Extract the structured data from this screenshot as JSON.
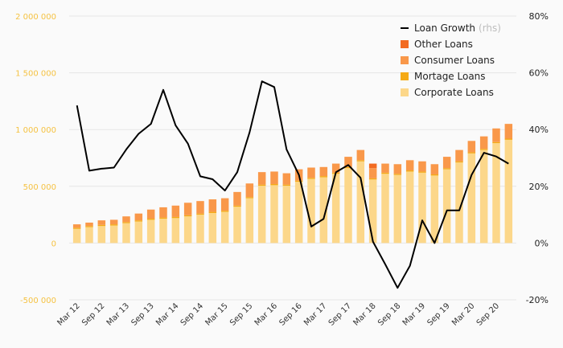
{
  "chart_data": {
    "type": "bar",
    "stacked": true,
    "categories": [
      "Mar 12",
      "Jun 12",
      "Sep 12",
      "Dec 12",
      "Mar 13",
      "Jun 13",
      "Sep 13",
      "Dec 13",
      "Mar 14",
      "Jun 14",
      "Sep 14",
      "Dec 14",
      "Mar 15",
      "Jun 15",
      "Sep 15",
      "Dec 15",
      "Mar 16",
      "Jun 16",
      "Sep 16",
      "Dec 16",
      "Mar 17",
      "Jun 17",
      "Sep 17",
      "Dec 17",
      "Mar 18",
      "Jun 18",
      "Sep 18",
      "Dec 18",
      "Mar 19",
      "Jun 19",
      "Sep 19",
      "Dec 19",
      "Mar 20",
      "Jun 20",
      "Sep 20",
      "Dec 20"
    ],
    "x_tick_labels": [
      "Mar 12",
      "Sep 12",
      "Mar 13",
      "Sep 13",
      "Mar 14",
      "Sep 14",
      "Mar 15",
      "Sep 15",
      "Mar 16",
      "Sep 16",
      "Mar 17",
      "Sep 17",
      "Mar 18",
      "Sep 18",
      "Mar 19",
      "Sep 19",
      "Mar 20",
      "Sep 20"
    ],
    "series": [
      {
        "name": "Corporate Loans",
        "color": "#fcd78a",
        "values": [
          125000,
          140000,
          150000,
          155000,
          175000,
          190000,
          205000,
          215000,
          220000,
          235000,
          250000,
          265000,
          275000,
          320000,
          395000,
          505000,
          510000,
          505000,
          540000,
          565000,
          580000,
          610000,
          660000,
          720000,
          560000,
          610000,
          600000,
          630000,
          620000,
          595000,
          650000,
          710000,
          790000,
          820000,
          880000,
          910000
        ]
      },
      {
        "name": "Mortage Loans",
        "color": "#f5aa14",
        "values": [
          10000,
          10000,
          10000,
          10000,
          10000,
          10000,
          10000,
          10000,
          10000,
          10000,
          10000,
          10000,
          10000,
          10000,
          10000,
          10000,
          10000,
          10000,
          10000,
          10000,
          10000,
          10000,
          10000,
          10000,
          10000,
          10000,
          10000,
          10000,
          10000,
          10000,
          10000,
          10000,
          10000,
          10000,
          10000,
          10000
        ]
      },
      {
        "name": "Consumer Loans",
        "color": "#f9984a",
        "values": [
          30000,
          30000,
          40000,
          40000,
          50000,
          60000,
          80000,
          90000,
          100000,
          110000,
          110000,
          110000,
          110000,
          120000,
          120000,
          110000,
          110000,
          100000,
          100000,
          90000,
          80000,
          80000,
          90000,
          90000,
          90000,
          80000,
          85000,
          90000,
          90000,
          90000,
          100000,
          100000,
          100000,
          110000,
          120000,
          130000
        ]
      },
      {
        "name": "Other Loans",
        "color": "#f26b21",
        "values": [
          0,
          0,
          0,
          0,
          0,
          0,
          0,
          0,
          0,
          0,
          0,
          0,
          0,
          0,
          0,
          0,
          0,
          0,
          0,
          0,
          0,
          0,
          0,
          0,
          40000,
          0,
          0,
          0,
          0,
          0,
          0,
          0,
          0,
          0,
          0,
          0
        ]
      }
    ],
    "line": {
      "name": "Loan Growth",
      "name_suffix": "(rhs)",
      "axis": "right",
      "color": "#000000",
      "values": [
        48.5,
        25.5,
        26.2,
        26.6,
        33,
        38.5,
        42,
        54,
        41.5,
        35,
        23.5,
        22.5,
        18.5,
        25,
        39,
        57,
        55,
        33,
        24,
        5.8,
        8.5,
        25,
        27.5,
        23,
        0.5,
        -7.5,
        -15.8,
        -8,
        8,
        0,
        11.5,
        11.5,
        24,
        31.8,
        30.5,
        28
      ]
    },
    "y_left": {
      "min": -500000,
      "max": 2000000,
      "ticks": [
        -500000,
        0,
        500000,
        1000000,
        1500000,
        2000000
      ],
      "tick_labels": [
        "-500 000",
        "0",
        "500 000",
        "1 000 000",
        "1 500 000",
        "2 000 000"
      ]
    },
    "y_right": {
      "min": -20,
      "max": 80,
      "ticks": [
        -20,
        0,
        20,
        40,
        60,
        80
      ],
      "tick_labels": [
        "-20%",
        "0%",
        "20%",
        "40%",
        "60%",
        "80%"
      ]
    },
    "legend": {
      "placement": "top-right",
      "items": [
        {
          "label": "Loan Growth",
          "suffix": "(rhs)",
          "kind": "line",
          "color": "#000000"
        },
        {
          "label": "Other Loans",
          "kind": "box",
          "color": "#f26b21"
        },
        {
          "label": "Consumer Loans",
          "kind": "box",
          "color": "#f9984a"
        },
        {
          "label": "Mortage Loans",
          "kind": "box",
          "color": "#f5aa14"
        },
        {
          "label": "Corporate Loans",
          "kind": "box",
          "color": "#fcd78a"
        }
      ]
    },
    "grid": "horizontal"
  }
}
